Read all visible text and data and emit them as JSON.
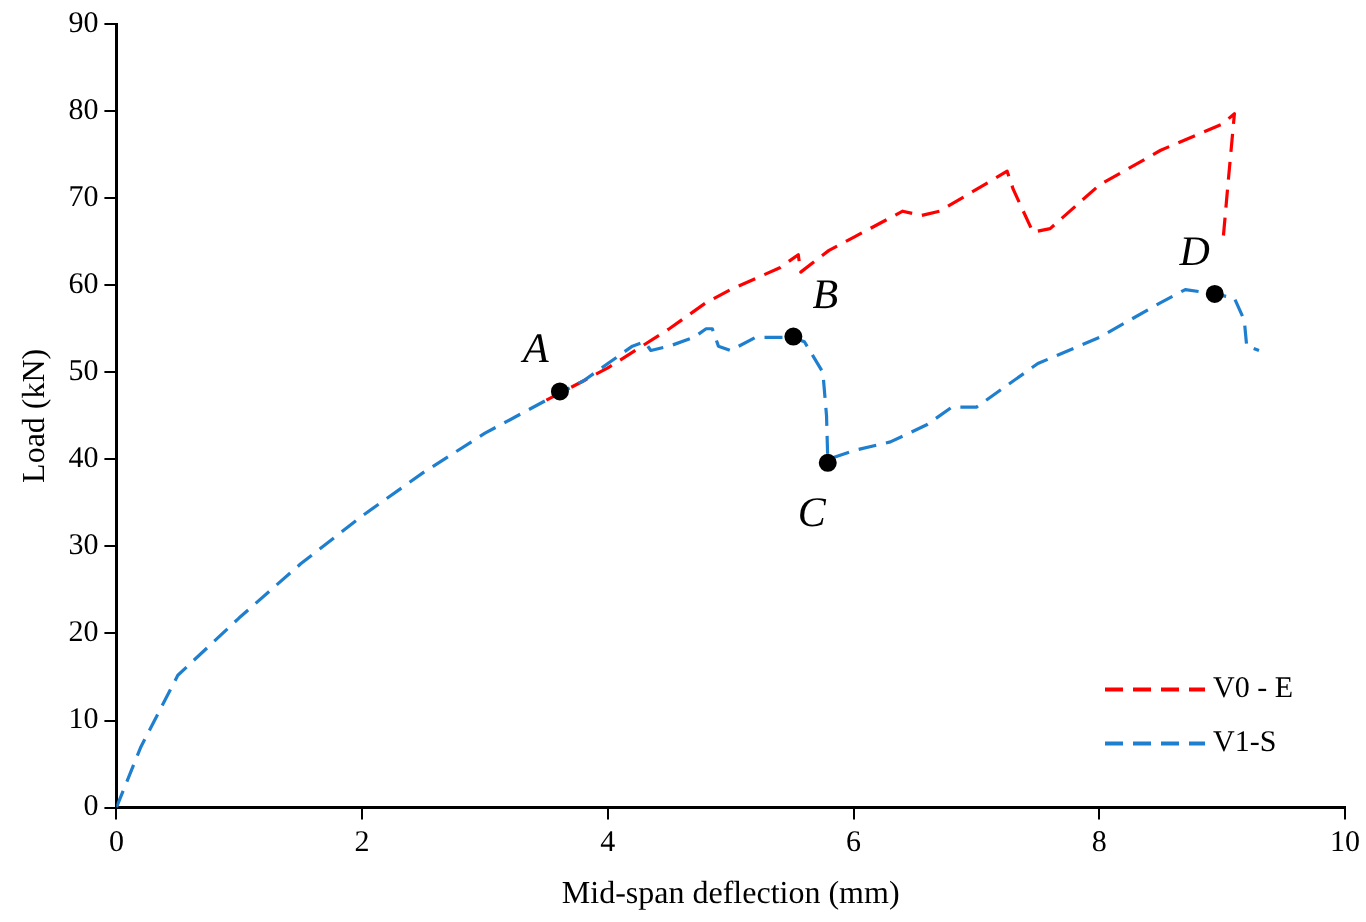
{
  "chart_data": {
    "type": "line",
    "xlabel": "Mid-span deflection (mm)",
    "ylabel": "Load (kN)",
    "xlim": [
      0,
      10
    ],
    "xticks": [
      0,
      2,
      4,
      6,
      8,
      10
    ],
    "ylim": [
      0,
      90
    ],
    "yticks": [
      0,
      10,
      20,
      30,
      40,
      50,
      60,
      70,
      80,
      90
    ],
    "grid": false,
    "legend": "bottom right",
    "line_style": "dashed",
    "marker": "none",
    "series": [
      {
        "name": "V0 - E",
        "color": "#ff0000",
        "x": [
          3.5,
          3.8,
          4,
          4.5,
          4.8,
          5,
          5.4,
          5.55,
          5.57,
          5.8,
          6,
          6.4,
          6.55,
          6.7,
          7,
          7.25,
          7.3,
          7.46,
          7.6,
          7.8,
          8,
          8.5,
          9,
          9.1,
          9.05,
          9.01
        ],
        "values": [
          46.8,
          49,
          50.5,
          55,
          58,
          59.5,
          62,
          63.5,
          61.5,
          64,
          65.5,
          68.5,
          68,
          68.5,
          71,
          73.1,
          71,
          66.1,
          66.5,
          69,
          71.5,
          75.5,
          78.5,
          79.7,
          72,
          65.6
        ]
      },
      {
        "name": "V1-S",
        "color": "#1f7fcf",
        "x": [
          0,
          0.2,
          0.5,
          1,
          1.5,
          2,
          2.5,
          3,
          3.5,
          3.8,
          4,
          4.2,
          4.3,
          4.35,
          4.5,
          4.7,
          4.8,
          4.85,
          4.9,
          5,
          5.2,
          5.5,
          5.6,
          5.75,
          5.78,
          5.79,
          6,
          6.3,
          6.6,
          6.8,
          7,
          7.2,
          7.5,
          8,
          8.5,
          8.7,
          8.94,
          9.1,
          9.18,
          9.2,
          9.3
        ],
        "values": [
          0,
          7,
          15.2,
          21.8,
          28,
          33.5,
          38.5,
          43,
          46.8,
          49,
          51,
          53,
          53.5,
          52.5,
          53,
          54,
          55,
          55,
          53,
          52.5,
          54,
          54,
          53.5,
          50,
          45,
          40,
          41,
          42,
          44,
          46,
          46,
          48,
          51,
          54,
          58,
          59.5,
          59,
          58.5,
          56,
          53,
          52.5
        ]
      },
      {
        "type": "scatter",
        "color": "#000000",
        "marker": "circle",
        "x": [
          3.61,
          5.51,
          5.79,
          8.94
        ],
        "values": [
          47.8,
          54.1,
          39.6,
          59
        ]
      }
    ],
    "annotations": [
      {
        "text": "A",
        "x": 3.61,
        "y": 47.8
      },
      {
        "text": "B",
        "x": 5.51,
        "y": 54.1
      },
      {
        "text": "C",
        "x": 5.79,
        "y": 39.6
      },
      {
        "text": "D",
        "x": 8.94,
        "y": 59
      }
    ]
  }
}
